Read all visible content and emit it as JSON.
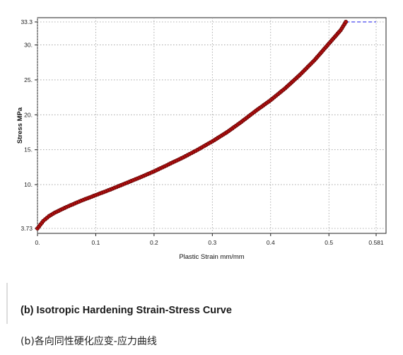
{
  "chart_data": {
    "type": "line",
    "xlabel": "Plastic Strain mm/mm",
    "ylabel": "Stress MPa",
    "xlim": [
      0,
      0.581
    ],
    "ylim": [
      3.73,
      33.3
    ],
    "x_ticks": [
      "0.",
      "0.1",
      "0.2",
      "0.3",
      "0.4",
      "0.5",
      "0.581"
    ],
    "x_tick_values": [
      0,
      0.1,
      0.2,
      0.3,
      0.4,
      0.5,
      0.581
    ],
    "y_ticks": [
      "3.73",
      "10.",
      "15.",
      "20.",
      "25.",
      "30.",
      "33.3"
    ],
    "y_tick_values": [
      3.73,
      10,
      15,
      20,
      25,
      30,
      33.3
    ],
    "grid": true,
    "colors": {
      "line": "#b30000",
      "marker_fill": "#b01010",
      "marker_edge": "#5a0000",
      "extension": "#1a1aee"
    },
    "series": [
      {
        "x": [
          0.0,
          0.01,
          0.02,
          0.03,
          0.05,
          0.075,
          0.1,
          0.125,
          0.15,
          0.175,
          0.2,
          0.225,
          0.25,
          0.275,
          0.3,
          0.325,
          0.35,
          0.375,
          0.4,
          0.425,
          0.45,
          0.475,
          0.5,
          0.52,
          0.529
        ],
        "y": [
          3.73,
          4.8,
          5.5,
          6.0,
          6.8,
          7.7,
          8.5,
          9.3,
          10.15,
          11.0,
          11.9,
          12.9,
          13.9,
          15.0,
          16.2,
          17.5,
          19.0,
          20.6,
          22.1,
          23.8,
          25.7,
          27.8,
          30.2,
          32.1,
          33.3
        ]
      }
    ],
    "extension": {
      "x": [
        0.529,
        0.581
      ],
      "y": [
        33.3,
        33.3
      ]
    }
  },
  "caption": {
    "title": "(b) Isotropic Hardening Strain-Stress Curve",
    "subtitle": "(b)各向同性硬化应变-应力曲线"
  }
}
